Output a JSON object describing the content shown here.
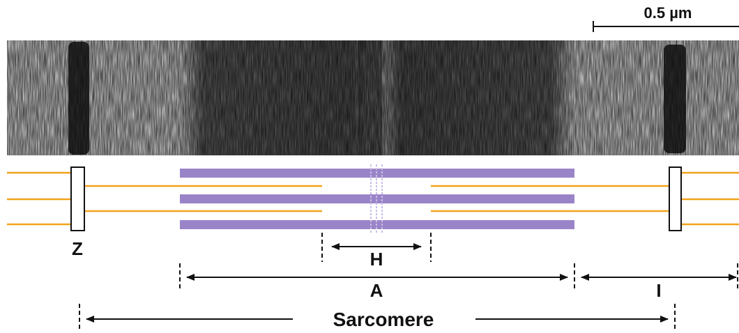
{
  "scale_bar": {
    "label": "0.5 µm"
  },
  "labels": {
    "z_band": "Z",
    "h_zone": "H",
    "a_band": "A",
    "i_band": "I",
    "sarcomere": "Sarcomere"
  },
  "colors": {
    "thin_filament": "#f2a21c",
    "thick_filament": "#9a84c8",
    "z_disc_fill": "#ffffff",
    "micrograph_bg": "#cfcfcf",
    "micrograph_dark": "#1a1a1a",
    "dimension_line": "#111111"
  },
  "micrograph": {
    "description_icon": "electron-micrograph-image"
  }
}
